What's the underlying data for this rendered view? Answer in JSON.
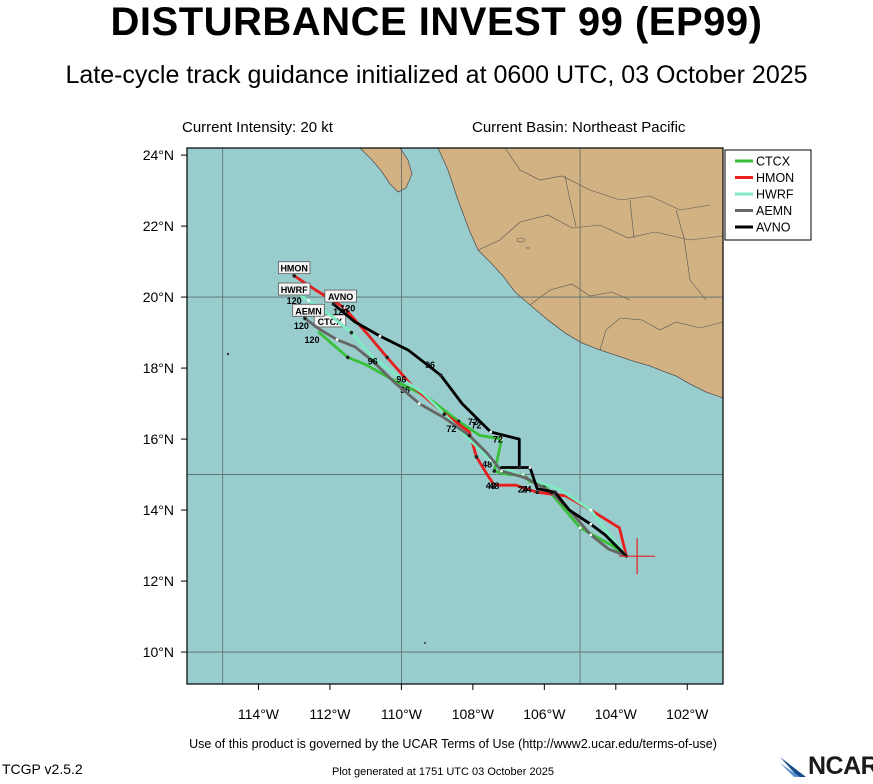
{
  "title": "DISTURBANCE INVEST 99 (EP99)",
  "subtitle": "Late-cycle track guidance initialized at 0600 UTC, 03 October 2025",
  "current_intensity": "Current Intensity: 20 kt",
  "current_basin": "Current Basin: Northeast Pacific",
  "footer": {
    "terms": "Use of this product is governed by the UCAR Terms of Use (http://www2.ucar.edu/terms-of-use)",
    "version": "TCGP v2.5.2",
    "generated": "Plot generated at 1751 UTC   03 October 2025",
    "logo_text": "NCAR"
  },
  "colors": {
    "ocean": "#99cdcd",
    "land": "#d2b282",
    "grid": "#5a6a6a",
    "CTCX": "#39c039",
    "HMON": "#e61e1e",
    "HWRF": "#7deac2",
    "AEMN": "#666666",
    "AVNO": "#000000"
  },
  "map": {
    "lon_ticks": [
      {
        "value": -114,
        "label": "114°W"
      },
      {
        "value": -112,
        "label": "112°W"
      },
      {
        "value": -110,
        "label": "110°W"
      },
      {
        "value": -108,
        "label": "108°W"
      },
      {
        "value": -106,
        "label": "106°W"
      },
      {
        "value": -104,
        "label": "104°W"
      },
      {
        "value": -102,
        "label": "102°W"
      }
    ],
    "lat_ticks": [
      {
        "value": 10,
        "label": "10°N"
      },
      {
        "value": 12,
        "label": "12°N"
      },
      {
        "value": 14,
        "label": "14°N"
      },
      {
        "value": 16,
        "label": "16°N"
      },
      {
        "value": 18,
        "label": "18°N"
      },
      {
        "value": 20,
        "label": "20°N"
      },
      {
        "value": 22,
        "label": "22°N"
      },
      {
        "value": 24,
        "label": "24°N"
      }
    ],
    "grid_lons": [
      -115,
      -110,
      -105
    ],
    "grid_lats": [
      10,
      15,
      20
    ],
    "lon_range": [
      -116,
      -101
    ],
    "lat_range": [
      9.1,
      24.2
    ],
    "initial_position": {
      "lon": -103.6,
      "lat": 12.7
    },
    "legend": [
      "CTCX",
      "HMON",
      "HWRF",
      "AEMN",
      "AVNO"
    ]
  },
  "tracks": [
    {
      "name": "CTCX",
      "points": [
        [
          -103.7,
          12.7
        ],
        [
          -104.1,
          13.0
        ],
        [
          -105.0,
          13.5
        ],
        [
          -105.5,
          14.1
        ],
        [
          -106.0,
          14.7
        ],
        [
          -106.4,
          14.8
        ],
        [
          -106.6,
          15.0
        ],
        [
          -107.0,
          15.0
        ],
        [
          -107.4,
          15.1
        ],
        [
          -107.3,
          15.5
        ],
        [
          -107.2,
          16.0
        ],
        [
          -107.8,
          16.1
        ],
        [
          -108.4,
          16.5
        ],
        [
          -109.3,
          17.2
        ],
        [
          -110.3,
          17.7
        ],
        [
          -111.0,
          18.1
        ],
        [
          -111.5,
          18.3
        ],
        [
          -112.3,
          19.0
        ]
      ],
      "labels": [
        {
          "lon": -107.6,
          "lat": 15.2,
          "text": "48"
        },
        {
          "lon": -107.3,
          "lat": 15.9,
          "text": "72"
        },
        {
          "lon": -109.9,
          "lat": 17.3,
          "text": "96"
        },
        {
          "lon": -112.5,
          "lat": 18.7,
          "text": "120"
        }
      ],
      "end_box": {
        "lon": -112.0,
        "lat": 19.3,
        "text": "CTCX"
      }
    },
    {
      "name": "HMON",
      "points": [
        [
          -103.7,
          12.7
        ],
        [
          -103.9,
          13.5
        ],
        [
          -104.7,
          14.0
        ],
        [
          -105.4,
          14.4
        ],
        [
          -106.2,
          14.5
        ],
        [
          -106.8,
          14.7
        ],
        [
          -107.4,
          14.7
        ],
        [
          -107.6,
          15.0
        ],
        [
          -107.9,
          15.5
        ],
        [
          -108.1,
          16.2
        ],
        [
          -108.9,
          16.8
        ],
        [
          -109.7,
          17.5
        ],
        [
          -110.4,
          18.3
        ],
        [
          -110.9,
          18.9
        ],
        [
          -111.6,
          19.7
        ],
        [
          -112.4,
          20.2
        ],
        [
          -113.0,
          20.6
        ]
      ],
      "labels": [
        {
          "lon": -106.6,
          "lat": 14.5,
          "text": "24"
        },
        {
          "lon": -107.4,
          "lat": 14.6,
          "text": "48"
        },
        {
          "lon": -111.7,
          "lat": 19.5,
          "text": "120"
        }
      ],
      "end_box": {
        "lon": -113.0,
        "lat": 20.8,
        "text": "HMON"
      }
    },
    {
      "name": "HWRF",
      "points": [
        [
          -103.7,
          12.7
        ],
        [
          -104.1,
          13.2
        ],
        [
          -104.7,
          14.0
        ],
        [
          -105.6,
          14.6
        ],
        [
          -106.5,
          14.9
        ],
        [
          -107.2,
          15.2
        ],
        [
          -107.5,
          15.4
        ],
        [
          -108.1,
          16.0
        ],
        [
          -108.8,
          16.7
        ],
        [
          -109.4,
          17.3
        ],
        [
          -110.0,
          17.7
        ],
        [
          -110.8,
          18.3
        ],
        [
          -111.4,
          19.0
        ],
        [
          -112.0,
          19.5
        ],
        [
          -112.6,
          19.9
        ],
        [
          -112.9,
          20.1
        ]
      ],
      "labels": [
        {
          "lon": -107.5,
          "lat": 14.6,
          "text": "48"
        },
        {
          "lon": -108.0,
          "lat": 16.4,
          "text": "72"
        },
        {
          "lon": -110.0,
          "lat": 17.6,
          "text": "96"
        },
        {
          "lon": -113.0,
          "lat": 19.8,
          "text": "120"
        }
      ],
      "end_box": {
        "lon": -113.0,
        "lat": 20.2,
        "text": "HWRF"
      }
    },
    {
      "name": "AEMN",
      "points": [
        [
          -103.7,
          12.7
        ],
        [
          -104.2,
          12.9
        ],
        [
          -104.7,
          13.3
        ],
        [
          -105.3,
          14.0
        ],
        [
          -105.8,
          14.5
        ],
        [
          -106.5,
          14.9
        ],
        [
          -107.2,
          15.1
        ],
        [
          -107.6,
          15.6
        ],
        [
          -108.1,
          16.1
        ],
        [
          -108.8,
          16.6
        ],
        [
          -109.5,
          17.0
        ],
        [
          -110.2,
          17.6
        ],
        [
          -110.8,
          18.2
        ],
        [
          -111.3,
          18.6
        ],
        [
          -111.8,
          18.8
        ],
        [
          -112.3,
          19.1
        ],
        [
          -112.7,
          19.4
        ]
      ],
      "labels": [
        {
          "lon": -106.5,
          "lat": 14.5,
          "text": "24"
        },
        {
          "lon": -108.6,
          "lat": 16.2,
          "text": "72"
        },
        {
          "lon": -110.8,
          "lat": 18.1,
          "text": "96"
        },
        {
          "lon": -112.8,
          "lat": 19.1,
          "text": "120"
        }
      ],
      "end_box": {
        "lon": -112.6,
        "lat": 19.6,
        "text": "AEMN"
      }
    },
    {
      "name": "AVNO",
      "points": [
        [
          -103.7,
          12.7
        ],
        [
          -104.3,
          13.3
        ],
        [
          -104.7,
          13.6
        ],
        [
          -105.3,
          14.0
        ],
        [
          -105.7,
          14.5
        ],
        [
          -106.2,
          14.6
        ],
        [
          -106.4,
          15.2
        ],
        [
          -107.2,
          15.2
        ],
        [
          -106.7,
          15.2
        ],
        [
          -106.7,
          16.0
        ],
        [
          -107.5,
          16.2
        ],
        [
          -108.3,
          17.0
        ],
        [
          -108.9,
          17.8
        ],
        [
          -109.8,
          18.5
        ],
        [
          -110.6,
          18.9
        ],
        [
          -111.3,
          19.3
        ],
        [
          -111.9,
          19.8
        ]
      ],
      "labels": [
        {
          "lon": -107.9,
          "lat": 16.3,
          "text": "72"
        },
        {
          "lon": -109.2,
          "lat": 18.0,
          "text": "96"
        },
        {
          "lon": -111.5,
          "lat": 19.6,
          "text": "120"
        }
      ],
      "end_box": {
        "lon": -111.7,
        "lat": 20.0,
        "text": "AVNO"
      }
    }
  ]
}
